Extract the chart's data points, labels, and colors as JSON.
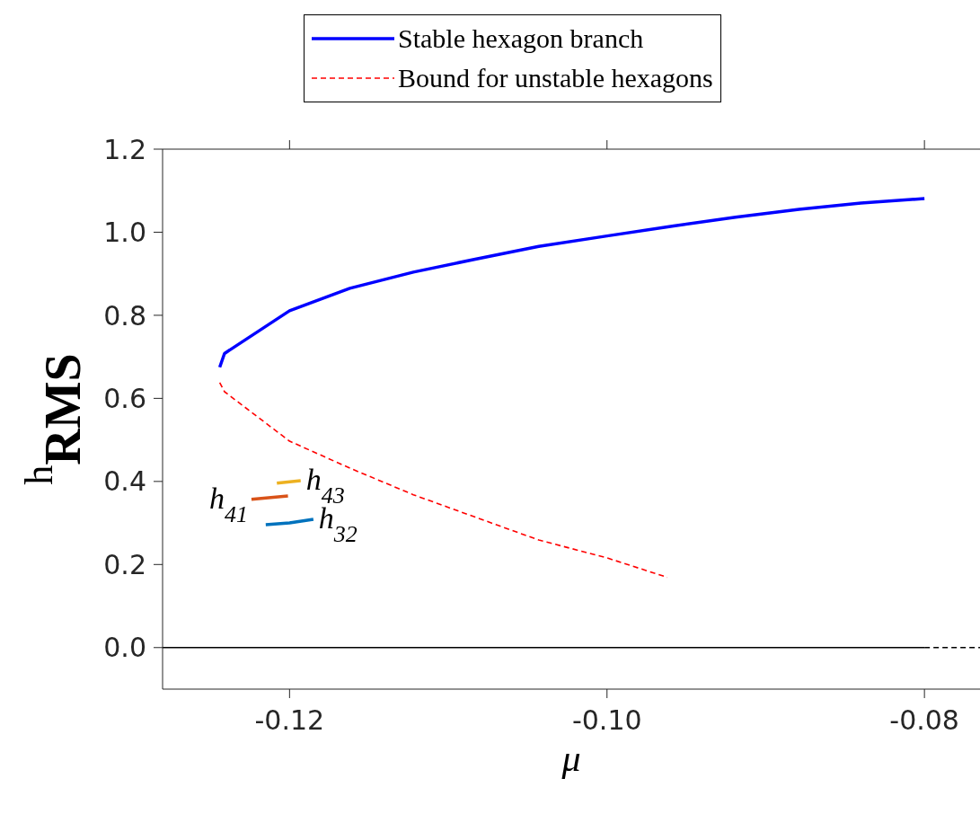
{
  "chart_data": {
    "type": "line",
    "xlabel": "μ",
    "ylabel": "h$_{RMS}$",
    "legend": "top",
    "xlim": [
      -0.128,
      -0.0765
    ],
    "ylim": [
      -0.1,
      1.2
    ],
    "xticks": [
      {
        "value": -0.12,
        "label": "-0.12"
      },
      {
        "value": -0.1,
        "label": "-0.10"
      },
      {
        "value": -0.08,
        "label": "-0.08"
      }
    ],
    "yticks": [
      {
        "value": 0,
        "label": "0.0"
      },
      {
        "value": 0.2,
        "label": "0.2"
      },
      {
        "value": 0.4,
        "label": "0.4"
      },
      {
        "value": 0.6,
        "label": "0.6"
      },
      {
        "value": 0.8,
        "label": "0.8"
      },
      {
        "value": 1,
        "label": "1.0"
      },
      {
        "value": 1.2,
        "label": "1.2"
      }
    ],
    "series": [
      {
        "name": "Stable hexagon branch",
        "color": "#0000ff",
        "line_style": "solid",
        "x": [
          -0.1244,
          -0.1241,
          -0.12,
          -0.1162,
          -0.1122,
          -0.1083,
          -0.1043,
          -0.1,
          -0.0958,
          -0.0919,
          -0.0879,
          -0.084,
          -0.08
        ],
        "values": [
          0.675,
          0.708,
          0.811,
          0.865,
          0.904,
          0.935,
          0.966,
          0.991,
          1.015,
          1.036,
          1.055,
          1.07,
          1.081
        ]
      },
      {
        "name": "Bound for unstable hexagons",
        "color": "#ff0000",
        "line_style": "dashed",
        "x": [
          -0.1244,
          -0.1241,
          -0.12,
          -0.1162,
          -0.1122,
          -0.1083,
          -0.1043,
          -0.1,
          -0.0962
        ],
        "values": [
          0.638,
          0.616,
          0.497,
          0.432,
          0.368,
          0.314,
          0.259,
          0.216,
          0.169
        ]
      },
      {
        "color": "#000000",
        "line_style": "solid",
        "x": [
          -0.128,
          -0.08
        ],
        "values": [
          0,
          0
        ]
      },
      {
        "color": "#000000",
        "line_style": "dashed",
        "x": [
          -0.08,
          -0.0765
        ],
        "values": [
          0,
          0
        ]
      },
      {
        "color": "#edb120",
        "line_style": "solid",
        "x": [
          -0.1208,
          -0.1193
        ],
        "values": [
          0.396,
          0.402
        ]
      },
      {
        "color": "#d95319",
        "line_style": "solid",
        "x": [
          -0.1224,
          -0.1201
        ],
        "values": [
          0.357,
          0.365
        ]
      },
      {
        "color": "#0072bd",
        "line_style": "solid",
        "x": [
          -0.1215,
          -0.12,
          -0.1185
        ],
        "values": [
          0.296,
          0.3,
          0.309
        ]
      }
    ],
    "annotations": [
      {
        "text": "h$_{43}$",
        "x": -0.1193,
        "y": 0.402
      },
      {
        "text": "h$_{41}$",
        "x": -0.1224,
        "y": 0.357
      },
      {
        "text": "h$_{32}$",
        "x": -0.1185,
        "y": 0.309
      }
    ]
  }
}
